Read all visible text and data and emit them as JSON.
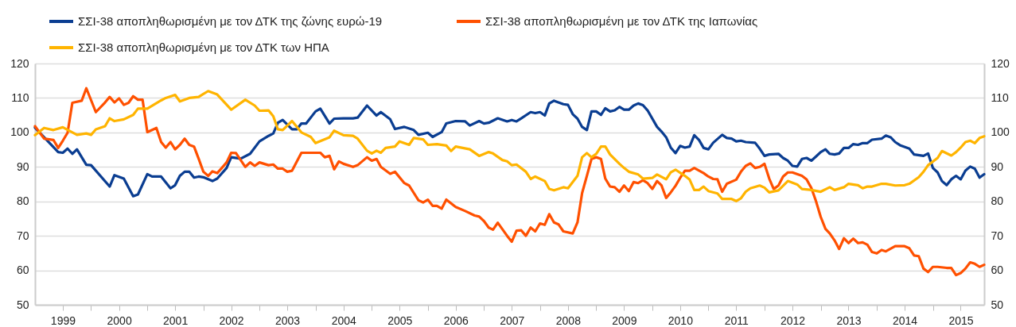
{
  "chart_data": {
    "type": "line",
    "legend": "top",
    "grid": "y",
    "line_style": "solid",
    "marker": "none",
    "ylim": [
      50,
      120
    ],
    "yticks": [
      50,
      60,
      70,
      80,
      90,
      100,
      110,
      120
    ],
    "y2lim": [
      50,
      120
    ],
    "y2ticks": [
      50,
      60,
      70,
      80,
      90,
      100,
      110,
      120
    ],
    "xlim": [
      "1999-01",
      "2015-12"
    ],
    "xticks": [
      {
        "value": "1999-07",
        "label": "1999"
      },
      {
        "value": "2000-01",
        "label": null
      },
      {
        "value": "2000-07",
        "label": "2000"
      },
      {
        "value": "2001-01",
        "label": null
      },
      {
        "value": "2001-07",
        "label": "2001"
      },
      {
        "value": "2002-01",
        "label": null
      },
      {
        "value": "2002-07",
        "label": "2002"
      },
      {
        "value": "2003-01",
        "label": null
      },
      {
        "value": "2003-07",
        "label": "2003"
      },
      {
        "value": "2004-01",
        "label": null
      },
      {
        "value": "2004-07",
        "label": "2004"
      },
      {
        "value": "2005-01",
        "label": null
      },
      {
        "value": "2005-07",
        "label": "2005"
      },
      {
        "value": "2006-01",
        "label": null
      },
      {
        "value": "2006-07",
        "label": "2006"
      },
      {
        "value": "2007-01",
        "label": null
      },
      {
        "value": "2007-07",
        "label": "2007"
      },
      {
        "value": "2008-01",
        "label": null
      },
      {
        "value": "2008-07",
        "label": "2008"
      },
      {
        "value": "2009-01",
        "label": null
      },
      {
        "value": "2009-07",
        "label": "2009"
      },
      {
        "value": "2010-01",
        "label": null
      },
      {
        "value": "2010-07",
        "label": "2010"
      },
      {
        "value": "2011-01",
        "label": null
      },
      {
        "value": "2011-07",
        "label": "2011"
      },
      {
        "value": "2012-01",
        "label": null
      },
      {
        "value": "2012-07",
        "label": "2012"
      },
      {
        "value": "2013-01",
        "label": null
      },
      {
        "value": "2013-07",
        "label": "2013"
      },
      {
        "value": "2014-01",
        "label": null
      },
      {
        "value": "2014-07",
        "label": "2014"
      },
      {
        "value": "2015-01",
        "label": null
      },
      {
        "value": "2015-07",
        "label": "2015"
      }
    ],
    "series": [
      {
        "name": "ΣΣΙ-38 αποπληθωρισμένη με τον ΔΤΚ της ζώνης ευρώ-19",
        "color": "#0a3d91",
        "x": [
          "1999-01",
          "1999-06",
          "1999-07",
          "1999-08",
          "1999-09",
          "1999-10",
          "1999-12",
          "2000-01",
          "2000-05",
          "2000-06",
          "2000-08",
          "2000-10",
          "2000-11",
          "2001-01",
          "2001-02",
          "2001-04",
          "2001-06",
          "2001-07",
          "2001-08",
          "2001-09",
          "2001-10",
          "2001-11",
          "2001-12",
          "2002-01",
          "2002-03",
          "2002-04",
          "2002-06",
          "2002-07",
          "2002-09",
          "2002-11",
          "2003-01",
          "2003-03",
          "2003-04",
          "2003-05",
          "2003-06",
          "2003-08",
          "2003-09",
          "2003-10",
          "2003-11",
          "2004-01",
          "2004-02",
          "2004-04",
          "2004-05",
          "2004-07",
          "2004-09",
          "2004-10",
          "2004-12",
          "2005-02",
          "2005-03",
          "2005-05",
          "2005-06",
          "2005-08",
          "2005-10",
          "2005-11",
          "2006-01",
          "2006-02",
          "2006-04",
          "2006-05",
          "2006-07",
          "2006-09",
          "2006-10",
          "2006-12",
          "2007-01",
          "2007-02",
          "2007-04",
          "2007-06",
          "2007-07",
          "2007-08",
          "2007-09",
          "2007-11",
          "2007-12",
          "2008-01",
          "2008-02",
          "2008-03",
          "2008-04",
          "2008-06",
          "2008-07",
          "2008-08",
          "2008-09",
          "2008-10",
          "2008-11",
          "2008-12",
          "2009-01",
          "2009-02",
          "2009-03",
          "2009-04",
          "2009-05",
          "2009-06",
          "2009-07",
          "2009-08",
          "2009-09",
          "2009-10",
          "2009-11",
          "2009-12",
          "2010-02",
          "2010-03",
          "2010-04",
          "2010-05",
          "2010-06",
          "2010-07",
          "2010-08",
          "2010-09",
          "2010-10",
          "2010-11",
          "2010-12",
          "2011-01",
          "2011-02",
          "2011-04",
          "2011-05",
          "2011-06",
          "2011-07",
          "2011-08",
          "2011-09",
          "2011-11",
          "2011-12",
          "2012-01",
          "2012-02",
          "2012-04",
          "2012-05",
          "2012-06",
          "2012-07",
          "2012-08",
          "2012-09",
          "2012-10",
          "2012-11",
          "2012-12",
          "2013-01",
          "2013-02",
          "2013-03",
          "2013-04",
          "2013-05",
          "2013-06",
          "2013-07",
          "2013-08",
          "2013-09",
          "2013-10",
          "2013-11",
          "2013-12",
          "2014-02",
          "2014-03",
          "2014-04",
          "2014-05",
          "2014-06",
          "2014-08",
          "2014-09",
          "2014-11",
          "2014-12",
          "2015-01",
          "2015-02",
          "2015-03",
          "2015-04",
          "2015-05",
          "2015-06",
          "2015-07",
          "2015-08",
          "2015-09",
          "2015-10",
          "2015-11",
          "2015-12"
        ],
        "values": [
          101.4,
          94.3,
          94.1,
          95.3,
          93.8,
          95.1,
          90.6,
          90.5,
          84.3,
          87.6,
          86.6,
          81.5,
          82.0,
          87.9,
          87.2,
          87.2,
          83.8,
          84.7,
          87.4,
          88.6,
          88.6,
          86.9,
          87.2,
          87,
          85.9,
          86.6,
          89.7,
          92.8,
          92.4,
          93.8,
          97.4,
          99,
          99.7,
          102.8,
          103.6,
          100.9,
          100.9,
          102.6,
          102.6,
          106.1,
          106.9,
          102.6,
          104,
          104.1,
          104.1,
          104.3,
          107.8,
          104.9,
          105.9,
          103.8,
          101,
          101.6,
          100.7,
          99.3,
          99.9,
          98.7,
          100.1,
          102.6,
          103.3,
          103.2,
          102,
          103.3,
          102.6,
          102.8,
          104.1,
          103.2,
          103.6,
          103.2,
          104.1,
          105.9,
          105.6,
          105.9,
          104.9,
          108.4,
          109.2,
          108.2,
          108,
          105.3,
          104,
          101.6,
          100.7,
          106.1,
          106.1,
          105.1,
          107,
          106.1,
          106.4,
          107.4,
          106.6,
          106.6,
          107.8,
          108.4,
          107.9,
          106.4,
          101.6,
          100.3,
          98.6,
          95.6,
          94,
          96.1,
          95.6,
          95.9,
          99.2,
          97.8,
          95.5,
          95.1,
          97,
          99.3,
          98.4,
          98.2,
          97.4,
          97.6,
          97.2,
          97,
          95.3,
          93.2,
          93.6,
          93.8,
          92.6,
          91.8,
          90.3,
          90.1,
          92.3,
          92.6,
          91.8,
          93,
          94.3,
          95.1,
          93.8,
          93.6,
          93.9,
          95.5,
          95.5,
          96.6,
          96.4,
          96.9,
          96.9,
          97.9,
          98.2,
          99.1,
          98.6,
          97.2,
          96.3,
          95.3,
          93.6,
          93.2,
          93.9,
          89.7,
          88.4,
          85.9,
          84.7,
          86.4,
          87.4,
          86.4,
          88.9,
          90.1,
          89.5,
          86.9,
          87.9
        ]
      },
      {
        "name": "ΣΣΙ-38 αποπληθωρισμένη με τον ΔΤΚ της Ιαπωνίας",
        "color": "#ff5000",
        "x": [
          "1999-01",
          "1999-03",
          "1999-05",
          "1999-06",
          "1999-07",
          "1999-08",
          "1999-09",
          "1999-11",
          "1999-12",
          "2000-02",
          "2000-04",
          "2000-05",
          "2000-06",
          "2000-07",
          "2000-08",
          "2000-09",
          "2000-10",
          "2000-11",
          "2000-12",
          "2001-01",
          "2001-03",
          "2001-04",
          "2001-05",
          "2001-06",
          "2001-07",
          "2001-08",
          "2001-09",
          "2001-10",
          "2001-11",
          "2001-12",
          "2002-01",
          "2002-02",
          "2002-03",
          "2002-04",
          "2002-05",
          "2002-06",
          "2002-07",
          "2002-08",
          "2002-10",
          "2002-11",
          "2002-12",
          "2003-01",
          "2003-03",
          "2003-04",
          "2003-05",
          "2003-06",
          "2003-07",
          "2003-08",
          "2003-10",
          "2004-02",
          "2004-03",
          "2004-04",
          "2004-05",
          "2004-06",
          "2004-07",
          "2004-09",
          "2004-10",
          "2004-12",
          "2005-01",
          "2005-02",
          "2005-03",
          "2005-05",
          "2005-06",
          "2005-08",
          "2005-09",
          "2005-11",
          "2005-12",
          "2006-01",
          "2006-02",
          "2006-03",
          "2006-04",
          "2006-05",
          "2006-07",
          "2006-09",
          "2006-11",
          "2006-12",
          "2007-01",
          "2007-02",
          "2007-03",
          "2007-04",
          "2007-06",
          "2007-07",
          "2007-08",
          "2007-09",
          "2007-10",
          "2007-11",
          "2007-12",
          "2008-01",
          "2008-02",
          "2008-03",
          "2008-04",
          "2008-05",
          "2008-06",
          "2008-08",
          "2008-09",
          "2008-10",
          "2008-11",
          "2008-12",
          "2009-01",
          "2009-02",
          "2009-03",
          "2009-04",
          "2009-05",
          "2009-06",
          "2009-07",
          "2009-08",
          "2009-09",
          "2009-10",
          "2009-11",
          "2009-12",
          "2010-01",
          "2010-02",
          "2010-03",
          "2010-04",
          "2010-05",
          "2010-06",
          "2010-07",
          "2010-08",
          "2010-09",
          "2010-10",
          "2010-12",
          "2011-01",
          "2011-02",
          "2011-03",
          "2011-04",
          "2011-05",
          "2011-07",
          "2011-08",
          "2011-09",
          "2011-10",
          "2011-11",
          "2011-12",
          "2012-01",
          "2012-02",
          "2012-03",
          "2012-04",
          "2012-05",
          "2012-06",
          "2012-07",
          "2012-09",
          "2012-10",
          "2012-11",
          "2012-12",
          "2013-01",
          "2013-02",
          "2013-03",
          "2013-04",
          "2013-05",
          "2013-06",
          "2013-07",
          "2013-08",
          "2013-09",
          "2013-10",
          "2013-11",
          "2013-12",
          "2014-01",
          "2014-02",
          "2014-03",
          "2014-05",
          "2014-07",
          "2014-08",
          "2014-09",
          "2014-10",
          "2014-11",
          "2014-12",
          "2015-01",
          "2015-02",
          "2015-04",
          "2015-05",
          "2015-06",
          "2015-07",
          "2015-08",
          "2015-09",
          "2015-10",
          "2015-11",
          "2015-12"
        ],
        "values": [
          101.8,
          98.2,
          97.8,
          95.5,
          97.6,
          99.9,
          108.6,
          109.2,
          112.8,
          105.9,
          108.7,
          110.3,
          108.7,
          109.9,
          108,
          108.6,
          110.5,
          109.5,
          109.5,
          100.1,
          101.3,
          97.2,
          95.6,
          97.2,
          95.1,
          96.4,
          98.2,
          96.4,
          95.9,
          92.4,
          88.6,
          87.4,
          88.7,
          88.2,
          89.7,
          91.3,
          94.1,
          94,
          90,
          91.3,
          90.3,
          91.3,
          90.5,
          90.7,
          89.5,
          89.5,
          88.6,
          88.9,
          94.1,
          94.1,
          92.8,
          93.2,
          89.3,
          91.6,
          90.9,
          90,
          90.5,
          92.8,
          91.8,
          92.3,
          90,
          88,
          88.6,
          85.3,
          84.6,
          80.3,
          79.7,
          80.5,
          78.7,
          78.7,
          77.9,
          80.5,
          78.4,
          77.2,
          75.9,
          75.6,
          74.3,
          72.4,
          71.8,
          73.8,
          70,
          68.3,
          71.5,
          71.6,
          70,
          72.4,
          71.3,
          73.6,
          73.2,
          76.3,
          73.9,
          73.3,
          71.3,
          70.7,
          73.9,
          82.4,
          87.4,
          92.3,
          92.8,
          92.3,
          86.6,
          84.3,
          84.1,
          82.8,
          84.6,
          83,
          85.6,
          85.3,
          86.1,
          85.3,
          83.6,
          85.9,
          84.7,
          81,
          82.6,
          84.5,
          86.8,
          88.9,
          88.9,
          89.7,
          88.2,
          87.2,
          86.5,
          86.4,
          82.8,
          85.1,
          86.3,
          88.6,
          90.3,
          91,
          89.7,
          90,
          90.9,
          86.6,
          83.6,
          84.6,
          87.2,
          88.4,
          88.4,
          87.4,
          86.4,
          83.9,
          80.1,
          75.5,
          72,
          70.7,
          68.7,
          66.2,
          69.3,
          67.9,
          69.2,
          67.9,
          68.1,
          67.4,
          65.3,
          64.9,
          65.9,
          65.5,
          67,
          67,
          66.4,
          64.3,
          64.1,
          60.5,
          59.5,
          61,
          61,
          60.7,
          60.7,
          58.6,
          59.2,
          60.5,
          62.3,
          61.9,
          61,
          61.6
        ]
      },
      {
        "name": "ΣΣΙ-38 αποπληθωρισμένη με τον ΔΤΚ των ΗΠΑ",
        "color": "#ffb400",
        "x": [
          "1999-01",
          "1999-03",
          "1999-05",
          "1999-07",
          "1999-10",
          "1999-12",
          "2000-01",
          "2000-02",
          "2000-04",
          "2000-05",
          "2000-06",
          "2000-08",
          "2000-10",
          "2000-11",
          "2001-01",
          "2001-04",
          "2001-05",
          "2001-07",
          "2001-08",
          "2001-10",
          "2001-12",
          "2002-02",
          "2002-04",
          "2002-07",
          "2002-10",
          "2002-12",
          "2003-01",
          "2003-03",
          "2003-04",
          "2003-05",
          "2003-06",
          "2003-08",
          "2003-10",
          "2003-12",
          "2004-01",
          "2004-04",
          "2004-05",
          "2004-07",
          "2004-09",
          "2004-10",
          "2004-12",
          "2005-01",
          "2005-02",
          "2005-03",
          "2005-04",
          "2005-06",
          "2005-07",
          "2005-09",
          "2005-10",
          "2005-12",
          "2006-01",
          "2006-03",
          "2006-05",
          "2006-06",
          "2006-07",
          "2006-10",
          "2006-12",
          "2007-02",
          "2007-03",
          "2007-05",
          "2007-06",
          "2007-07",
          "2007-08",
          "2007-10",
          "2007-11",
          "2007-12",
          "2008-02",
          "2008-03",
          "2008-04",
          "2008-06",
          "2008-07",
          "2008-09",
          "2008-10",
          "2008-11",
          "2008-12",
          "2009-01",
          "2009-02",
          "2009-03",
          "2009-04",
          "2009-06",
          "2009-07",
          "2009-08",
          "2009-10",
          "2009-11",
          "2010-01",
          "2010-02",
          "2010-04",
          "2010-05",
          "2010-06",
          "2010-08",
          "2010-09",
          "2010-10",
          "2010-11",
          "2010-12",
          "2011-01",
          "2011-03",
          "2011-04",
          "2011-06",
          "2011-07",
          "2011-08",
          "2011-09",
          "2011-10",
          "2011-12",
          "2012-01",
          "2012-02",
          "2012-04",
          "2012-06",
          "2012-08",
          "2012-09",
          "2012-11",
          "2013-01",
          "2013-03",
          "2013-04",
          "2013-06",
          "2013-07",
          "2013-09",
          "2013-10",
          "2013-11",
          "2013-12",
          "2014-02",
          "2014-03",
          "2014-05",
          "2014-07",
          "2014-08",
          "2014-10",
          "2014-11",
          "2014-12",
          "2015-02",
          "2015-03",
          "2015-05",
          "2015-06",
          "2015-07",
          "2015-08",
          "2015-09",
          "2015-10",
          "2015-11",
          "2015-12"
        ],
        "values": [
          99.2,
          101.3,
          100.7,
          101.5,
          99.3,
          99.7,
          99.3,
          100.9,
          101.8,
          104.1,
          103.3,
          103.8,
          105.1,
          106.9,
          106.9,
          109.3,
          110,
          110.9,
          109,
          110,
          110.3,
          112,
          111,
          106.6,
          109.5,
          107.8,
          106.3,
          106.4,
          104.7,
          100.9,
          100.7,
          103.3,
          100,
          98.7,
          96.9,
          98.6,
          100.5,
          99.2,
          99,
          98.2,
          94.7,
          93.9,
          94.7,
          94.1,
          95.5,
          95.9,
          97.4,
          96.4,
          98.4,
          98,
          96.4,
          96.6,
          96.2,
          94.6,
          95.9,
          95.1,
          93.2,
          94.3,
          93.9,
          92,
          91.6,
          90.5,
          90.7,
          88.6,
          86.5,
          87.2,
          85.9,
          83.6,
          83.2,
          84.1,
          83.8,
          87.4,
          92.8,
          94,
          92.8,
          93.8,
          95.9,
          95.9,
          93.6,
          90.9,
          89.7,
          88.6,
          87.8,
          86.6,
          86.8,
          87.8,
          86.4,
          88.4,
          89.2,
          87.4,
          86.3,
          83.3,
          83.3,
          84.3,
          83,
          82.3,
          80.7,
          80.7,
          80.1,
          80.9,
          82.8,
          83.8,
          84.6,
          84,
          82.6,
          83.2,
          85.9,
          84.9,
          83.6,
          83.3,
          82.8,
          84.1,
          83.3,
          84.1,
          85.1,
          84.7,
          83.8,
          84.3,
          84.3,
          85.1,
          85.1,
          84.6,
          84.7,
          85.1,
          87,
          88.6,
          90.5,
          92.6,
          94.6,
          93.3,
          94.3,
          95.6,
          97.2,
          97.6,
          96.9,
          98.4,
          98.9
        ]
      }
    ]
  }
}
